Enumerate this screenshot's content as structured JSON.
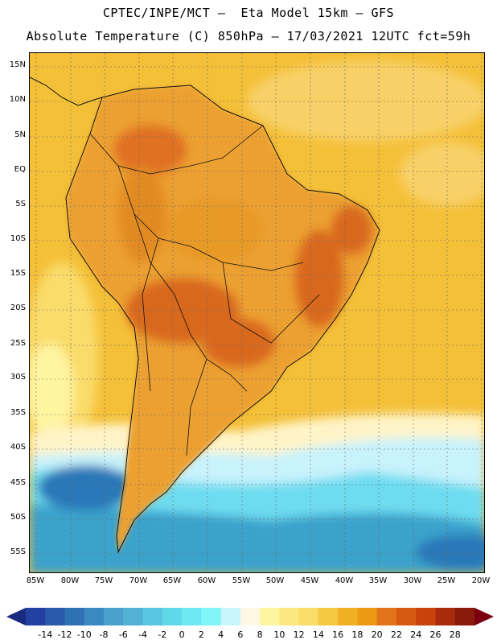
{
  "header": {
    "line1": "CPTEC/INPE/MCT –  Eta Model 15km – GFS",
    "line2": "Absolute Temperature (C) 850hPa – 17/03/2021 12UTC fct=59h"
  },
  "map": {
    "lat_labels": [
      "15N",
      "10N",
      "5N",
      "EQ",
      "5S",
      "10S",
      "15S",
      "20S",
      "25S",
      "30S",
      "35S",
      "40S",
      "45S",
      "50S",
      "55S"
    ],
    "lon_labels": [
      "85W",
      "80W",
      "75W",
      "70W",
      "65W",
      "60W",
      "55W",
      "50W",
      "45W",
      "40W",
      "35W",
      "30W",
      "25W",
      "20W"
    ]
  },
  "colorbar": {
    "labels": [
      "-14",
      "-12",
      "-10",
      "-8",
      "-6",
      "-4",
      "-2",
      "0",
      "2",
      "4",
      "6",
      "8",
      "10",
      "12",
      "14",
      "16",
      "18",
      "20",
      "22",
      "24",
      "26",
      "28"
    ],
    "colors": [
      "#2440a0",
      "#2a5aaa",
      "#2f72b4",
      "#3a8ac0",
      "#4aa2cc",
      "#52b2d6",
      "#58c6e0",
      "#60d8ea",
      "#6ee8f2",
      "#80f6f8",
      "#c8f6fc",
      "#fff8e4",
      "#fff4a0",
      "#fce880",
      "#fadc6a",
      "#f4c840",
      "#f0b024",
      "#ec9a14",
      "#e2741a",
      "#d85a12",
      "#c8420c",
      "#a82c0c",
      "#8a1a0c"
    ],
    "low_arrow_color": "#1a2a80",
    "high_arrow_color": "#7a0010"
  },
  "palette": {
    "warm_ocean": "#f4c038",
    "north_ocean_light": "#f8d068",
    "land_hot": "#e89a28",
    "land_very_hot": "#d8681c",
    "south_pale": "#fff4c8",
    "cold_light": "#c8f2fc",
    "cold_mid": "#6edcf0",
    "cold_deep": "#3aa2cc",
    "cold_deepest": "#2a78b8"
  }
}
